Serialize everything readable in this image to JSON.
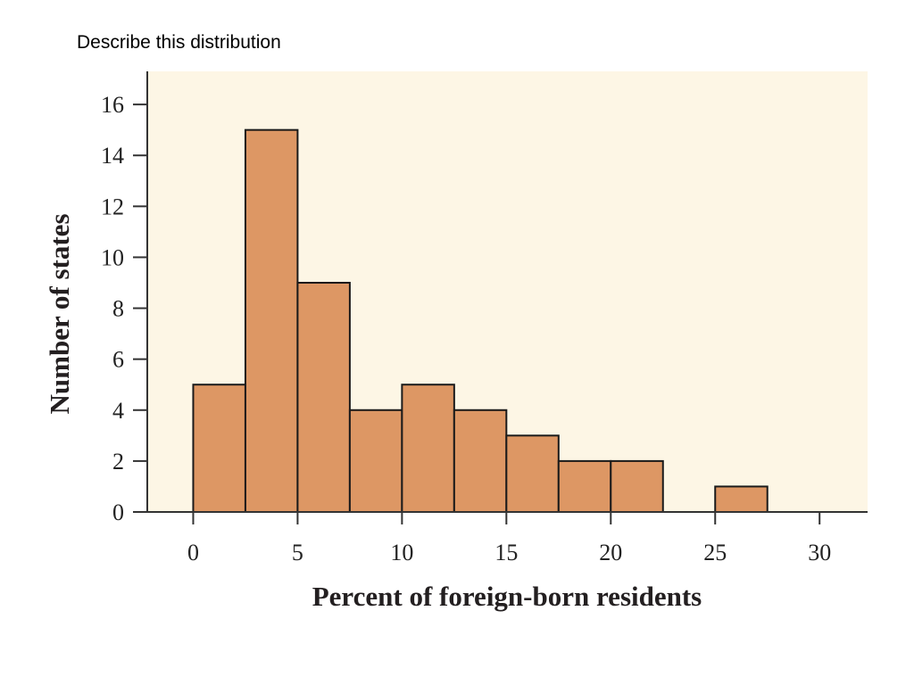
{
  "slide": {
    "heading": "Describe this distribution"
  },
  "chart_data": {
    "type": "bar",
    "subtype": "histogram",
    "bin_width": 2.5,
    "bins": [
      {
        "start": 0,
        "end": 2.5,
        "count": 5
      },
      {
        "start": 2.5,
        "end": 5,
        "count": 15
      },
      {
        "start": 5,
        "end": 7.5,
        "count": 9
      },
      {
        "start": 7.5,
        "end": 10,
        "count": 4
      },
      {
        "start": 10,
        "end": 12.5,
        "count": 5
      },
      {
        "start": 12.5,
        "end": 15,
        "count": 4
      },
      {
        "start": 15,
        "end": 17.5,
        "count": 3
      },
      {
        "start": 17.5,
        "end": 20,
        "count": 2
      },
      {
        "start": 20,
        "end": 22.5,
        "count": 2
      },
      {
        "start": 25,
        "end": 27.5,
        "count": 1
      }
    ],
    "xlabel": "Percent of foreign-born residents",
    "ylabel": "Number of states",
    "xticks": [
      0,
      5,
      10,
      15,
      20,
      25,
      30
    ],
    "yticks": [
      0,
      2,
      4,
      6,
      8,
      10,
      12,
      14,
      16
    ],
    "xlim": [
      -2.2,
      32.3
    ],
    "ylim": [
      0,
      17.3
    ],
    "grid": false,
    "colors": {
      "bar_fill": "#dd9764",
      "bar_edge": "#1a1a1a",
      "plot_background": "#fdf6e5",
      "axis": "#333333"
    }
  }
}
